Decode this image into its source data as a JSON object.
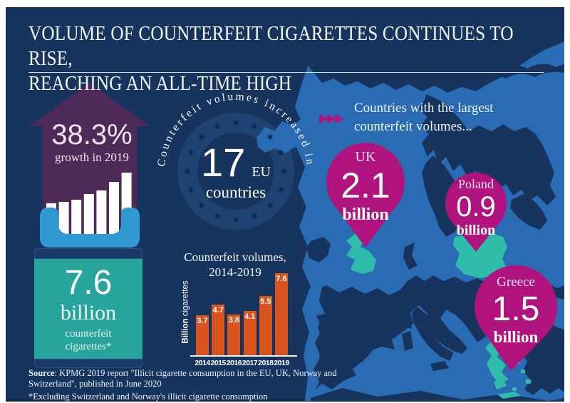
{
  "header": {
    "title_line1": "VOLUME OF COUNTERFEIT CIGARETTES CONTINUES TO RISE,",
    "title_line2": "REACHING AN ALL-TIME HIGH"
  },
  "growth": {
    "value": "38.3%",
    "label": "growth in 2019"
  },
  "total": {
    "value": "7.6",
    "unit": "billion",
    "label_line1": "counterfeit",
    "label_line2": "cigarettes*"
  },
  "badge": {
    "curved_text": "Counterfeit volumes increased in",
    "number": "17",
    "unit": "EU",
    "label": "countries"
  },
  "map_header": {
    "chevrons_icon": "▶▶▶",
    "line1": "Countries with the largest",
    "line2": "counterfeit volumes..."
  },
  "pins": [
    {
      "country": "UK",
      "value": "2.1",
      "unit": "billion"
    },
    {
      "country": "Poland",
      "value": "0.9",
      "unit": "billion"
    },
    {
      "country": "Greece",
      "value": "1.5",
      "unit": "billion"
    }
  ],
  "chart": {
    "title_line1": "Counterfeit volumes,",
    "title_line2": "2014-2019",
    "ylabel_bold": "Billion",
    "ylabel_rest": " cigarettes"
  },
  "chart_data": {
    "type": "bar",
    "categories": [
      "2014",
      "2015",
      "2016",
      "2017",
      "2018",
      "2019"
    ],
    "values": [
      3.7,
      4.7,
      3.8,
      4.1,
      5.5,
      7.6
    ],
    "title": "Counterfeit volumes, 2014-2019",
    "xlabel": "",
    "ylabel": "Billion cigarettes",
    "ylim": [
      0,
      8
    ],
    "grid": false,
    "bar_color": "#d9531f",
    "value_labels": [
      "3.7",
      "4.7",
      "3.8",
      "4.1",
      "5.5",
      "7.6"
    ]
  },
  "footer": {
    "source_bold": "Source",
    "source_text": ": KPMG 2019 report \"Illicit cigarette consumption in the EU, UK, Norway and Switzerland\", published in June 2020",
    "footnote": "*Excluding Switzerland and Norway's illicit cigarette consumption"
  },
  "colors": {
    "panel_navy": "#16345e",
    "sea_blue": "#2a6cb4",
    "highlight_teal": "#2fbcaa",
    "box_teal": "#27a49b",
    "pin_magenta": "#b1137e",
    "bar_orange": "#d9531f",
    "arrow_purple": "#4d2a57",
    "tray_blue": "#2f9ad2"
  }
}
